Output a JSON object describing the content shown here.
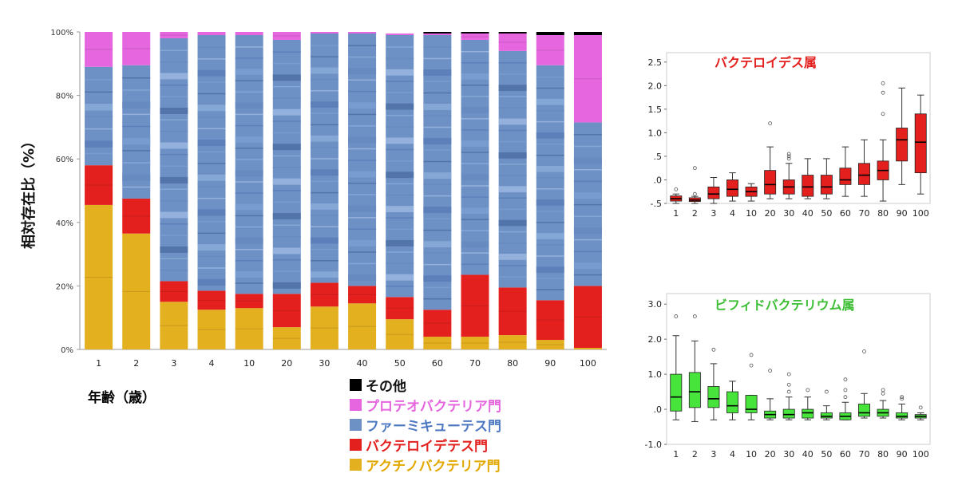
{
  "chart_data": [
    {
      "type": "bar",
      "stacked": true,
      "ylabel": "相対存在比（%）",
      "xlabel": "年齢（歳）",
      "yticks": [
        "0%",
        "20%",
        "40%",
        "60%",
        "80%",
        "100%"
      ],
      "ylim": [
        0,
        100
      ],
      "categories": [
        "1",
        "2",
        "3",
        "4",
        "10",
        "20",
        "30",
        "40",
        "50",
        "60",
        "70",
        "80",
        "90",
        "100"
      ],
      "series": [
        {
          "name": "アクチノバクテリア門",
          "color": "#E3B020",
          "values": [
            45.5,
            36.5,
            15,
            12.5,
            13,
            7,
            13.5,
            14.5,
            9.5,
            4,
            4,
            4.5,
            3,
            0.5
          ]
        },
        {
          "name": "バクテロイデテス門",
          "color": "#E4201E",
          "values": [
            12.5,
            11,
            6.5,
            6,
            4.5,
            10.5,
            7.5,
            5.5,
            7,
            8.5,
            19.5,
            15,
            12.5,
            19.5
          ]
        },
        {
          "name": "ファーミキューテス門",
          "color": "#6D91C5",
          "values": [
            31,
            42,
            76.5,
            80.5,
            81.5,
            80,
            78.5,
            79.5,
            82.5,
            86.5,
            74,
            74.5,
            74,
            51.5
          ]
        },
        {
          "name": "プロテオバクテリア門",
          "color": "#E566DE",
          "values": [
            11,
            10.5,
            2,
            1,
            1,
            2.5,
            0.5,
            0.5,
            0.5,
            0.5,
            2,
            5.5,
            9.5,
            27.5
          ]
        },
        {
          "name": "その他",
          "color": "#000000",
          "values": [
            0,
            0,
            0,
            0,
            0,
            0,
            0,
            0,
            0,
            0.5,
            0.5,
            0.5,
            1,
            1
          ]
        }
      ],
      "legend_order": [
        "その他",
        "プロテオバクテリア門",
        "ファーミキューテス門",
        "バクテロイデテス門",
        "アクチノバクテリア門"
      ],
      "legend_position": "bottom-right",
      "grid": false
    },
    {
      "type": "box",
      "title": "バクテロイデス属",
      "color": "#E4201E",
      "categories": [
        "1",
        "2",
        "3",
        "4",
        "10",
        "20",
        "30",
        "40",
        "50",
        "60",
        "70",
        "80",
        "90",
        "100"
      ],
      "yticks": [
        "-.5",
        ".0",
        ".5",
        "1.0",
        "1.5",
        "2.0",
        "2.5"
      ],
      "ylim": [
        -0.5,
        2.7
      ],
      "boxes": [
        {
          "min": -0.5,
          "q1": -0.45,
          "median": -0.4,
          "q3": -0.34,
          "max": -0.3,
          "outliers": [
            -0.2
          ]
        },
        {
          "min": -0.5,
          "q1": -0.46,
          "median": -0.43,
          "q3": -0.38,
          "max": -0.35,
          "outliers": [
            -0.3,
            0.25
          ]
        },
        {
          "min": -0.5,
          "q1": -0.4,
          "median": -0.3,
          "q3": -0.15,
          "max": 0.05,
          "outliers": []
        },
        {
          "min": -0.45,
          "q1": -0.35,
          "median": -0.2,
          "q3": 0.0,
          "max": 0.15,
          "outliers": []
        },
        {
          "min": -0.45,
          "q1": -0.35,
          "median": -0.25,
          "q3": -0.15,
          "max": -0.08,
          "outliers": []
        },
        {
          "min": -0.4,
          "q1": -0.3,
          "median": -0.1,
          "q3": 0.2,
          "max": 0.7,
          "outliers": [
            1.2
          ]
        },
        {
          "min": -0.4,
          "q1": -0.3,
          "median": -0.15,
          "q3": 0.0,
          "max": 0.35,
          "outliers": [
            0.45,
            0.5,
            0.55
          ]
        },
        {
          "min": -0.4,
          "q1": -0.35,
          "median": -0.15,
          "q3": 0.1,
          "max": 0.45,
          "outliers": []
        },
        {
          "min": -0.4,
          "q1": -0.3,
          "median": -0.15,
          "q3": 0.1,
          "max": 0.45,
          "outliers": []
        },
        {
          "min": -0.35,
          "q1": -0.1,
          "median": 0.0,
          "q3": 0.25,
          "max": 0.7,
          "outliers": []
        },
        {
          "min": -0.35,
          "q1": -0.1,
          "median": 0.1,
          "q3": 0.35,
          "max": 0.85,
          "outliers": []
        },
        {
          "min": -0.45,
          "q1": 0.0,
          "median": 0.2,
          "q3": 0.4,
          "max": 0.85,
          "outliers": [
            1.4,
            1.85,
            2.05
          ]
        },
        {
          "min": -0.1,
          "q1": 0.4,
          "median": 0.85,
          "q3": 1.1,
          "max": 1.95,
          "outliers": []
        },
        {
          "min": -0.3,
          "q1": 0.15,
          "median": 0.8,
          "q3": 1.4,
          "max": 1.8,
          "outliers": []
        }
      ]
    },
    {
      "type": "box",
      "title": "ビフィドバクテリウム属",
      "color": "#47E43B",
      "categories": [
        "1",
        "2",
        "3",
        "4",
        "10",
        "20",
        "30",
        "40",
        "50",
        "60",
        "70",
        "80",
        "90",
        "100"
      ],
      "yticks": [
        "-1.0",
        ".0",
        "1.0",
        "2.0",
        "3.0"
      ],
      "ylim": [
        -1.0,
        3.3
      ],
      "boxes": [
        {
          "min": -0.3,
          "q1": -0.05,
          "median": 0.35,
          "q3": 1.0,
          "max": 2.1,
          "outliers": [
            2.65
          ]
        },
        {
          "min": -0.35,
          "q1": 0.05,
          "median": 0.5,
          "q3": 1.05,
          "max": 1.95,
          "outliers": [
            2.65
          ]
        },
        {
          "min": -0.3,
          "q1": 0.05,
          "median": 0.3,
          "q3": 0.65,
          "max": 1.3,
          "outliers": [
            1.7
          ]
        },
        {
          "min": -0.3,
          "q1": -0.1,
          "median": 0.1,
          "q3": 0.5,
          "max": 0.8,
          "outliers": []
        },
        {
          "min": -0.3,
          "q1": -0.1,
          "median": 0.0,
          "q3": 0.4,
          "max": 0.4,
          "outliers": [
            1.25,
            1.55
          ]
        },
        {
          "min": -0.3,
          "q1": -0.25,
          "median": -0.15,
          "q3": -0.05,
          "max": 0.3,
          "outliers": [
            1.1
          ]
        },
        {
          "min": -0.3,
          "q1": -0.25,
          "median": -0.15,
          "q3": 0.0,
          "max": 0.35,
          "outliers": [
            0.5,
            0.7,
            1.0
          ]
        },
        {
          "min": -0.3,
          "q1": -0.25,
          "median": -0.1,
          "q3": 0.0,
          "max": 0.35,
          "outliers": [
            0.55
          ]
        },
        {
          "min": -0.3,
          "q1": -0.25,
          "median": -0.2,
          "q3": -0.1,
          "max": 0.1,
          "outliers": [
            0.5
          ]
        },
        {
          "min": -0.3,
          "q1": -0.3,
          "median": -0.2,
          "q3": -0.1,
          "max": 0.2,
          "outliers": [
            0.35,
            0.55,
            0.85
          ]
        },
        {
          "min": -0.25,
          "q1": -0.2,
          "median": -0.1,
          "q3": 0.15,
          "max": 0.45,
          "outliers": [
            1.65
          ]
        },
        {
          "min": -0.25,
          "q1": -0.2,
          "median": -0.1,
          "q3": 0.0,
          "max": 0.25,
          "outliers": [
            0.45,
            0.55
          ]
        },
        {
          "min": -0.3,
          "q1": -0.25,
          "median": -0.2,
          "q3": -0.1,
          "max": 0.15,
          "outliers": [
            0.3,
            0.35
          ]
        },
        {
          "min": -0.3,
          "q1": -0.25,
          "median": -0.2,
          "q3": -0.15,
          "max": -0.1,
          "outliers": [
            0.05
          ]
        }
      ]
    }
  ]
}
